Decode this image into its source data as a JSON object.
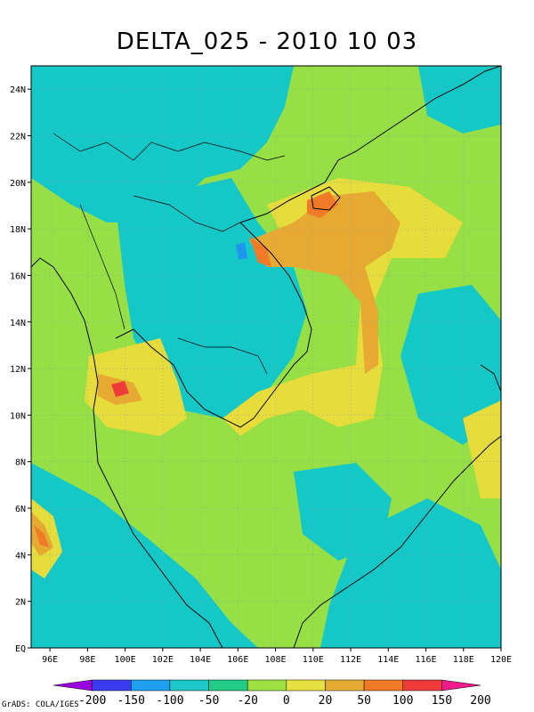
{
  "title": "DELTA_025 - 2010 10 03",
  "credit": "GrADS: COLA/IGES",
  "lat_labels": [
    "24N",
    "22N",
    "20N",
    "18N",
    "16N",
    "14N",
    "12N",
    "10N",
    "8N",
    "6N",
    "4N",
    "2N",
    "EQ"
  ],
  "lon_labels": [
    "96E",
    "98E",
    "100E",
    "102E",
    "104E",
    "106E",
    "108E",
    "110E",
    "112E",
    "114E",
    "116E",
    "118E",
    "120E"
  ],
  "colorbar": {
    "labels": [
      "-200",
      "-150",
      "-100",
      "-50",
      "-20",
      "0",
      "20",
      "50",
      "100",
      "150",
      "200"
    ],
    "colors": [
      "#9a00e0",
      "#3a3af0",
      "#1f9ff0",
      "#1fc8c8",
      "#22cc88",
      "#9ee040",
      "#e6e040",
      "#e6aa30",
      "#f07a28",
      "#f03a3a",
      "#f01a8c"
    ]
  },
  "field_colors": {
    "cyan": "#14c8c8",
    "green": "#96e046",
    "yellow": "#e6dc3c",
    "orange": "#e6aa32",
    "dark_orange": "#f07a28",
    "red": "#f03a3a",
    "blue": "#1e96f0"
  }
}
